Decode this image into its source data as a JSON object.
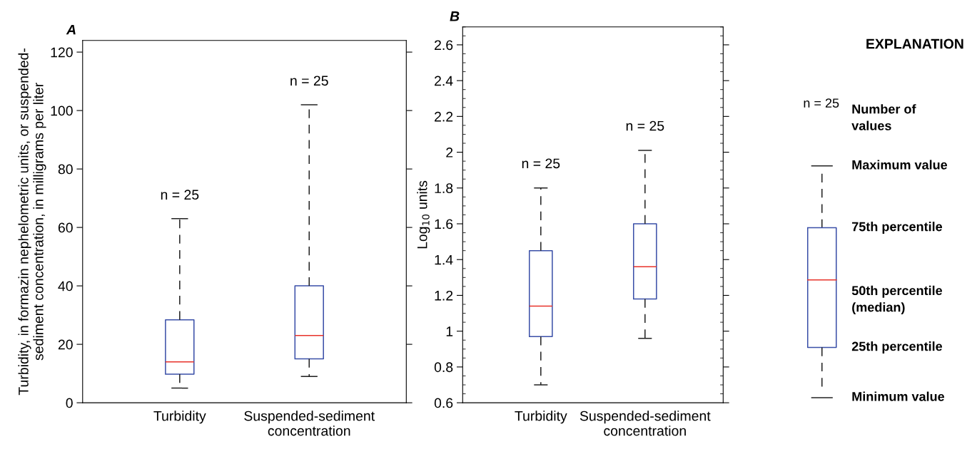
{
  "chart_data": [
    {
      "type": "box",
      "title": "A",
      "ylabel": "Turbidity, in formazin nephelometric units, or suspended-\nsediment concentration, in milligrams per liter",
      "categories": [
        "Turbidity",
        "Suspended-sediment\nconcentration"
      ],
      "series": [
        {
          "color": "#3a4fa8",
          "boxes": [
            {
              "low": 5,
              "q1": 9.8,
              "median": 14,
              "q3": 28.4,
              "high": 63
            },
            {
              "low": 9,
              "q1": 15,
              "median": 23,
              "q3": 40,
              "high": 102
            }
          ]
        }
      ],
      "ylim": [
        0,
        124
      ],
      "yticks": [
        0,
        20,
        40,
        60,
        80,
        100,
        120
      ],
      "annotations": [
        "n = 25",
        "n = 25"
      ]
    },
    {
      "type": "box",
      "title": "B",
      "ylabel": "Log$_{10}$ units",
      "categories": [
        "Turbidity",
        "Suspended-sediment\nconcentration"
      ],
      "series": [
        {
          "color": "#3a4fa8",
          "boxes": [
            {
              "low": 0.7,
              "q1": 0.97,
              "median": 1.14,
              "q3": 1.45,
              "high": 1.8
            },
            {
              "low": 0.96,
              "q1": 1.18,
              "median": 1.36,
              "q3": 1.6,
              "high": 2.01
            }
          ]
        }
      ],
      "ylim": [
        0.6,
        2.7
      ],
      "yticks": [
        0.6,
        0.8,
        1,
        1.2,
        1.4,
        1.6,
        1.8,
        2,
        2.2,
        2.4,
        2.6
      ],
      "annotations": [
        "n = 25",
        "n = 25"
      ]
    },
    {
      "type": "other",
      "title": "EXPLANATION",
      "annotations": [
        "n = 25",
        "Number of\nvalues",
        "Maximum value",
        "75th percentile",
        "50th percentile\n(median)",
        "25th percentile",
        "Minimum value"
      ]
    }
  ]
}
